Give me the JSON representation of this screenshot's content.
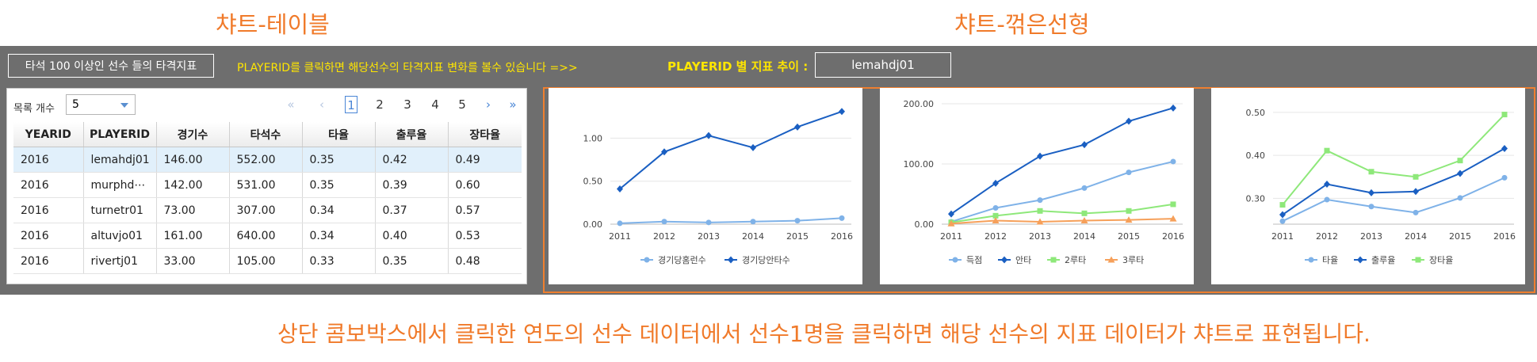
{
  "captions": {
    "table": "챠트-테이블",
    "line": "챠트-꺾은선형",
    "bottom": "상단 콤보박스에서 클릭한 연도의 선수 데이터에서 선수1명을 클릭하면 해당 선수의 지표 데이터가 챠트로 표현됩니다."
  },
  "header": {
    "title": "타석 100 이상인  선수 들의 타격지표",
    "hint": "PLAYERID를 클릭하면 해당선수의 타격지표 변화를 볼수 있습니다 =>>",
    "pid_label": "PLAYERID 별 지표 추이 :",
    "pid_value": "lemahdj01"
  },
  "grid": {
    "rows_label": "목록 개수",
    "rows_value": "5",
    "pager": {
      "first": "«",
      "prev": "‹",
      "pages": [
        "1",
        "2",
        "3",
        "4",
        "5"
      ],
      "current": "1",
      "next": "›",
      "last": "»"
    },
    "columns": [
      "YEARID",
      "PLAYERID",
      "경기수",
      "타석수",
      "타율",
      "출루율",
      "장타율"
    ],
    "rows": [
      [
        "2016",
        "lemahdj01",
        "146.00",
        "552.00",
        "0.35",
        "0.42",
        "0.49"
      ],
      [
        "2016",
        "murphd⋯",
        "142.00",
        "531.00",
        "0.35",
        "0.39",
        "0.60"
      ],
      [
        "2016",
        "turnetr01",
        "73.00",
        "307.00",
        "0.34",
        "0.37",
        "0.57"
      ],
      [
        "2016",
        "altuvjo01",
        "161.00",
        "640.00",
        "0.34",
        "0.40",
        "0.53"
      ],
      [
        "2016",
        "rivertj01",
        "33.00",
        "105.00",
        "0.33",
        "0.35",
        "0.48"
      ]
    ],
    "selected_row": 0
  },
  "colors": {
    "accent": "#ef7f2f",
    "highlight": "#ffe600",
    "panel": "#6e6e6e"
  },
  "chart_data": [
    {
      "type": "line",
      "x": [
        "2011",
        "2012",
        "2013",
        "2014",
        "2015",
        "2016"
      ],
      "yticks": [
        "0.00",
        "0.50",
        "1.00"
      ],
      "ylim": [
        0,
        1.4
      ],
      "grid": true,
      "legend": "bottom",
      "series": [
        {
          "name": "경기당홈런수",
          "color": "#7fb2e8",
          "marker": "circle",
          "values": [
            0.01,
            0.03,
            0.02,
            0.03,
            0.04,
            0.07
          ]
        },
        {
          "name": "경기당안타수",
          "color": "#1a5fc2",
          "marker": "diamond",
          "values": [
            0.41,
            0.84,
            1.03,
            0.89,
            1.13,
            1.31
          ]
        }
      ]
    },
    {
      "type": "line",
      "x": [
        "2011",
        "2012",
        "2013",
        "2014",
        "2015",
        "2016"
      ],
      "yticks": [
        "0.00",
        "100.00",
        "200.00"
      ],
      "ylim": [
        0,
        200
      ],
      "grid": true,
      "legend": "bottom",
      "series": [
        {
          "name": "득점",
          "color": "#7fb2e8",
          "marker": "circle",
          "values": [
            4,
            27,
            40,
            60,
            86,
            104
          ]
        },
        {
          "name": "안타",
          "color": "#1a5fc2",
          "marker": "diamond",
          "values": [
            17,
            68,
            113,
            132,
            171,
            193
          ]
        },
        {
          "name": "2루타",
          "color": "#8ee87a",
          "marker": "square",
          "values": [
            3,
            14,
            22,
            18,
            22,
            33
          ]
        },
        {
          "name": "3루타",
          "color": "#f6a05a",
          "marker": "triangle",
          "values": [
            1,
            6,
            4,
            6,
            7,
            9
          ]
        }
      ]
    },
    {
      "type": "line",
      "x": [
        "2011",
        "2012",
        "2013",
        "2014",
        "2015",
        "2016"
      ],
      "yticks": [
        "0.30",
        "0.40",
        "0.50"
      ],
      "ylim": [
        0.24,
        0.52
      ],
      "grid": true,
      "legend": "bottom",
      "series": [
        {
          "name": "타율",
          "color": "#7fb2e8",
          "marker": "circle",
          "values": [
            0.247,
            0.297,
            0.281,
            0.267,
            0.301,
            0.348
          ]
        },
        {
          "name": "출루율",
          "color": "#1a5fc2",
          "marker": "diamond",
          "values": [
            0.262,
            0.333,
            0.313,
            0.316,
            0.358,
            0.416
          ]
        },
        {
          "name": "장타율",
          "color": "#8ee87a",
          "marker": "square",
          "values": [
            0.285,
            0.411,
            0.362,
            0.35,
            0.388,
            0.495
          ]
        }
      ]
    }
  ]
}
